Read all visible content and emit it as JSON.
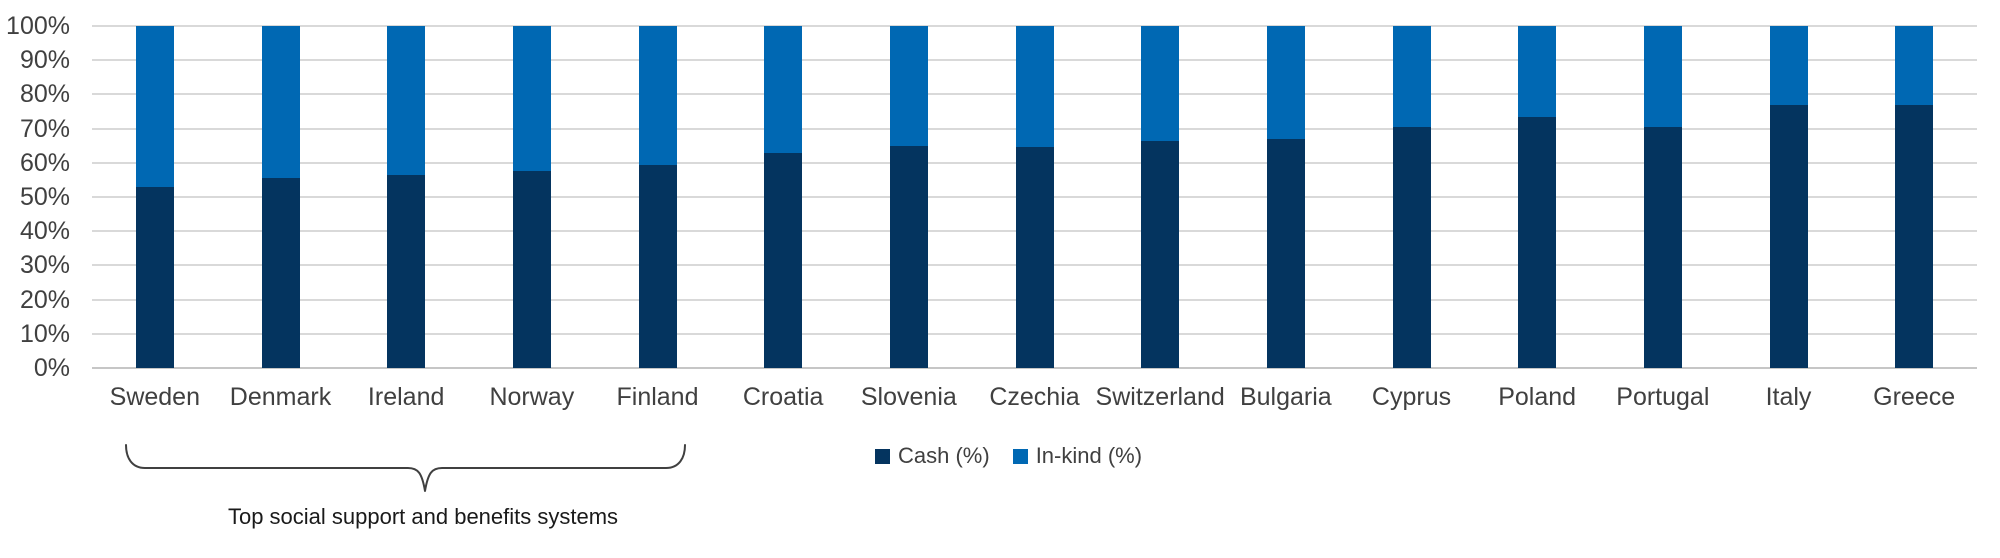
{
  "chart_data": {
    "type": "bar",
    "stacked": true,
    "title": "",
    "categories": [
      "Sweden",
      "Denmark",
      "Ireland",
      "Norway",
      "Finland",
      "Croatia",
      "Slovenia",
      "Czechia",
      "Switzerland",
      "Bulgaria",
      "Cyprus",
      "Poland",
      "Portugal",
      "Italy",
      "Greece"
    ],
    "series": [
      {
        "name": "Cash (%)",
        "color": "#04345f",
        "values": [
          53,
          55.5,
          56.5,
          57.5,
          59.5,
          63,
          65,
          64.5,
          66.5,
          67,
          70.5,
          73.5,
          70.5,
          77,
          77
        ]
      },
      {
        "name": "In-kind (%)",
        "color": "#0068b3",
        "values": [
          47,
          44.5,
          43.5,
          42.5,
          40.5,
          37,
          35,
          35.5,
          33.5,
          33,
          29.5,
          26.5,
          29.5,
          23,
          23
        ]
      }
    ],
    "xlabel": "",
    "ylabel": "",
    "ylim": [
      0,
      100
    ],
    "y_tick_step": 10,
    "y_ticks": [
      "0%",
      "10%",
      "20%",
      "30%",
      "40%",
      "50%",
      "60%",
      "70%",
      "80%",
      "90%",
      "100%"
    ],
    "grid": true,
    "legend_position": "bottom-center"
  },
  "legend": {
    "items": [
      {
        "label": "Cash (%)",
        "color": "#04345f"
      },
      {
        "label": "In-kind (%)",
        "color": "#0068b3"
      }
    ]
  },
  "annotation": {
    "text": "Top social support and benefits systems",
    "bracket_span": [
      "Sweden",
      "Denmark",
      "Ireland",
      "Norway",
      "Finland"
    ]
  },
  "colors": {
    "gridline": "#d9d9d9",
    "axis_text": "#404040",
    "annotation_text": "#1a1a1a"
  }
}
